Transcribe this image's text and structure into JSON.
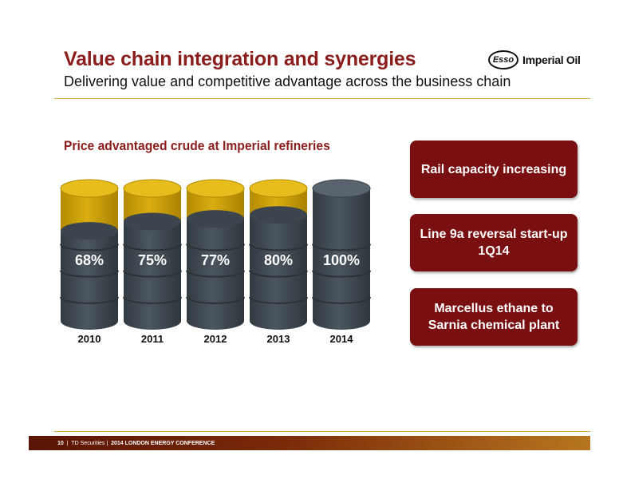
{
  "header": {
    "title": "Value chain integration and synergies",
    "subtitle": "Delivering value and competitive advantage across the business chain"
  },
  "logo": {
    "mark": "Esso",
    "name": "Imperial Oil"
  },
  "colors": {
    "accent": "#8b1d1d",
    "callout": "#7a0f12",
    "barrel_gray": "#4b5660",
    "barrel_gold": "#d9ad10"
  },
  "chart_data": {
    "type": "bar",
    "title": "Price advantaged crude at Imperial refineries",
    "categories": [
      "2010",
      "2011",
      "2012",
      "2013",
      "2014"
    ],
    "values": [
      68,
      75,
      77,
      80,
      100
    ],
    "value_labels": [
      "68%",
      "75%",
      "77%",
      "80%",
      "100%"
    ],
    "unit": "%",
    "ylim": [
      0,
      100
    ],
    "grid": false,
    "legend": "none"
  },
  "callouts": [
    {
      "text": "Rail capacity increasing"
    },
    {
      "text": "Line 9a reversal start-up 1Q14"
    },
    {
      "text": "Marcellus ethane to Sarnia chemical plant"
    }
  ],
  "footer": {
    "page": "10",
    "source": "TD Securities",
    "event": "2014 LONDON ENERGY CONFERENCE"
  }
}
